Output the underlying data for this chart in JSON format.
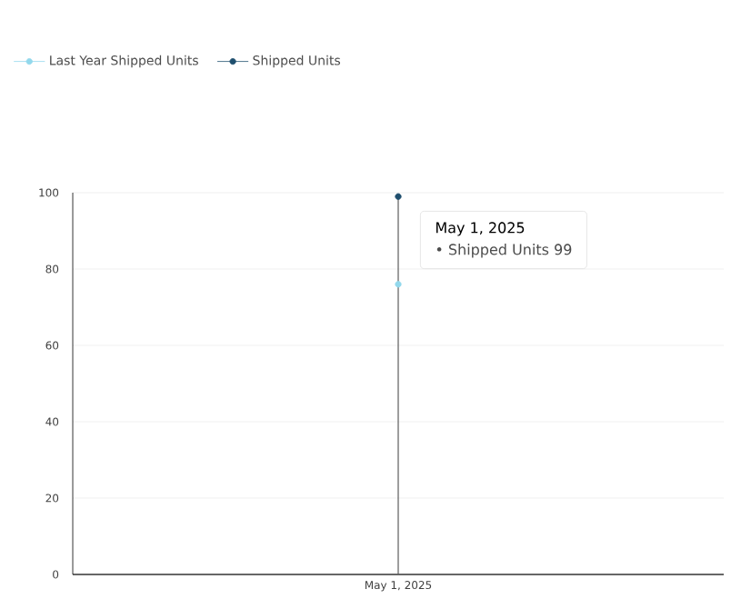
{
  "chart_data": {
    "type": "line",
    "categories": [
      "May 1, 2025"
    ],
    "series": [
      {
        "name": "Last Year Shipped Units",
        "color": "#92d8ec",
        "values": [
          76
        ]
      },
      {
        "name": "Shipped Units",
        "color": "#1f4f6e",
        "values": [
          99
        ]
      }
    ],
    "ylim": [
      0,
      100
    ],
    "yticks": [
      0,
      20,
      40,
      60,
      80,
      100
    ],
    "grid": "y",
    "legend": "top left",
    "marker": "circle",
    "ref_lines": [
      {
        "axis": "x",
        "value": "May 1, 2025",
        "color": "#5c5c5c"
      }
    ],
    "annotations": [
      "May 1, 2025",
      "• Shipped Units  99"
    ]
  }
}
